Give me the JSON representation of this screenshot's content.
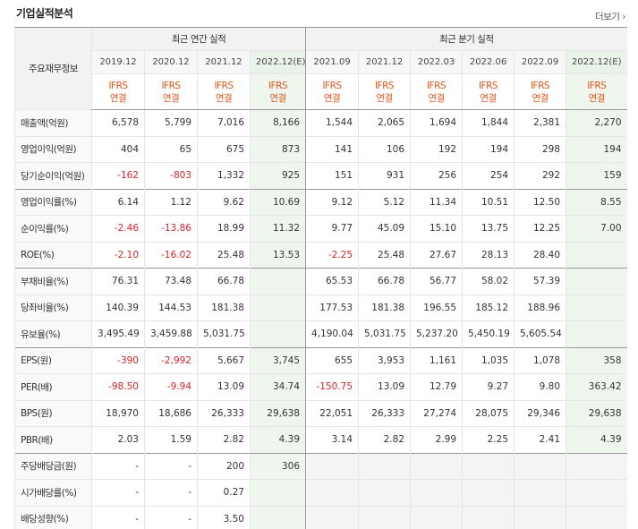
{
  "title": "기업실적분석",
  "more_label": "더보기",
  "more_icon": "chevron-right-icon",
  "corner_label": "주요재무정보",
  "groups": {
    "annual": "최근 연간 실적",
    "quarterly": "최근 분기 실적"
  },
  "colors": {
    "ifrs": "#e0561c",
    "negative": "#d6232b",
    "estimate_bg": "#eef6ee"
  },
  "periods": [
    {
      "label": "2019.12",
      "std": "IFRS",
      "type": "연결",
      "est": false
    },
    {
      "label": "2020.12",
      "std": "IFRS",
      "type": "연결",
      "est": false
    },
    {
      "label": "2021.12",
      "std": "IFRS",
      "type": "연결",
      "est": false
    },
    {
      "label": "2022.12(E)",
      "std": "IFRS",
      "type": "연결",
      "est": true
    },
    {
      "label": "2021.09",
      "std": "IFRS",
      "type": "연결",
      "est": false
    },
    {
      "label": "2021.12",
      "std": "IFRS",
      "type": "연결",
      "est": false
    },
    {
      "label": "2022.03",
      "std": "IFRS",
      "type": "연결",
      "est": false
    },
    {
      "label": "2022.06",
      "std": "IFRS",
      "type": "연결",
      "est": false
    },
    {
      "label": "2022.09",
      "std": "IFRS",
      "type": "연결",
      "est": false
    },
    {
      "label": "2022.12(E)",
      "std": "IFRS",
      "type": "연결",
      "est": true
    }
  ],
  "rows": [
    {
      "label": "매출액(억원)",
      "values": [
        "6,578",
        "5,799",
        "7,016",
        "8,166",
        "1,544",
        "2,065",
        "1,694",
        "1,844",
        "2,381",
        "2,270"
      ]
    },
    {
      "label": "영업이익(억원)",
      "values": [
        "404",
        "65",
        "675",
        "873",
        "141",
        "106",
        "192",
        "194",
        "298",
        "194"
      ]
    },
    {
      "label": "당기순이익(억원)",
      "values": [
        "-162",
        "-803",
        "1,332",
        "925",
        "151",
        "931",
        "256",
        "254",
        "292",
        "159"
      ]
    },
    {
      "label": "영업이익률(%)",
      "values": [
        "6.14",
        "1.12",
        "9.62",
        "10.69",
        "9.12",
        "5.12",
        "11.34",
        "10.51",
        "12.50",
        "8.55"
      ],
      "sep": true
    },
    {
      "label": "순이익률(%)",
      "values": [
        "-2.46",
        "-13.86",
        "18.99",
        "11.32",
        "9.77",
        "45.09",
        "15.10",
        "13.75",
        "12.25",
        "7.00"
      ]
    },
    {
      "label": "ROE(%)",
      "values": [
        "-2.10",
        "-16.02",
        "25.48",
        "13.53",
        "-2.25",
        "25.48",
        "27.67",
        "28.13",
        "28.40",
        ""
      ]
    },
    {
      "label": "부채비율(%)",
      "values": [
        "76.31",
        "73.48",
        "66.78",
        "",
        "65.53",
        "66.78",
        "56.77",
        "58.02",
        "57.39",
        ""
      ],
      "sep": true
    },
    {
      "label": "당좌비율(%)",
      "values": [
        "140.39",
        "144.53",
        "181.38",
        "",
        "177.53",
        "181.38",
        "196.55",
        "185.12",
        "188.96",
        ""
      ]
    },
    {
      "label": "유보율(%)",
      "values": [
        "3,495.49",
        "3,459.88",
        "5,031.75",
        "",
        "4,190.04",
        "5,031.75",
        "5,237.20",
        "5,450.19",
        "5,605.54",
        ""
      ]
    },
    {
      "label": "EPS(원)",
      "values": [
        "-390",
        "-2,992",
        "5,667",
        "3,745",
        "655",
        "3,953",
        "1,161",
        "1,035",
        "1,078",
        "358"
      ],
      "sep": true
    },
    {
      "label": "PER(배)",
      "values": [
        "-98.50",
        "-9.94",
        "13.09",
        "34.74",
        "-150.75",
        "13.09",
        "12.79",
        "9.27",
        "9.80",
        "363.42"
      ]
    },
    {
      "label": "BPS(원)",
      "values": [
        "18,970",
        "18,686",
        "26,333",
        "29,638",
        "22,051",
        "26,333",
        "27,274",
        "28,075",
        "29,346",
        "29,638"
      ]
    },
    {
      "label": "PBR(배)",
      "values": [
        "2.03",
        "1.59",
        "2.82",
        "4.39",
        "3.14",
        "2.82",
        "2.99",
        "2.25",
        "2.41",
        "4.39"
      ]
    },
    {
      "label": "주당배당금(원)",
      "values": [
        "-",
        "-",
        "200",
        "306",
        null,
        null,
        null,
        null,
        null,
        null
      ],
      "sep": true
    },
    {
      "label": "시가배당률(%)",
      "values": [
        "-",
        "-",
        "0.27",
        "",
        null,
        null,
        null,
        null,
        null,
        null
      ]
    },
    {
      "label": "배당성향(%)",
      "values": [
        "-",
        "-",
        "3.50",
        "",
        null,
        null,
        null,
        null,
        null,
        null
      ]
    }
  ]
}
